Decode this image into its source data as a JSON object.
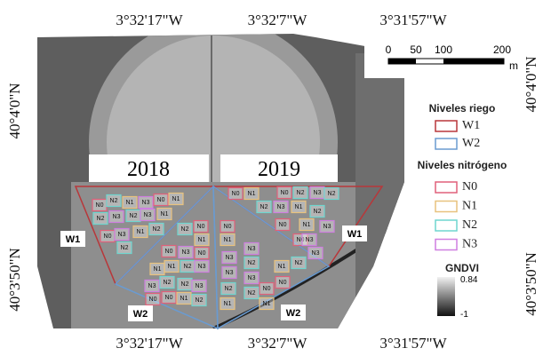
{
  "coordinates": {
    "top": [
      "3°32'17\"W",
      "3°32'7\"W",
      "3°31'57\"W"
    ],
    "bottom": [
      "3°32'17\"W",
      "3°32'7\"W",
      "3°31'57\"W"
    ],
    "left": [
      "40°4'0\"N",
      "40°3'50\"N"
    ],
    "right": [
      "40°4'0\"N",
      "40°3'50\"N"
    ]
  },
  "years": [
    "2018",
    "2019"
  ],
  "scale_bar": {
    "ticks": [
      "0",
      "50",
      "100",
      "200"
    ],
    "unit": "m"
  },
  "field_labels": [
    "W1",
    "W2",
    "W2",
    "W1"
  ],
  "legend": {
    "irrigation_title": "Niveles riego",
    "irrigation": [
      {
        "label": "W1",
        "color": "#b8373a"
      },
      {
        "label": "W2",
        "color": "#6a9bd1"
      }
    ],
    "nitrogen_title": "Niveles nitrógeno",
    "nitrogen": [
      {
        "label": "N0",
        "color": "#e0607a"
      },
      {
        "label": "N1",
        "color": "#e8c27e"
      },
      {
        "label": "N2",
        "color": "#6fd6cf"
      },
      {
        "label": "N3",
        "color": "#cf7fe0"
      }
    ],
    "index_title": "GNDVI",
    "index_max": "0.84",
    "index_min": "-1"
  },
  "plots": [
    "N0",
    "N2",
    "N1",
    "N3",
    "N0",
    "N1",
    "N2",
    "N3",
    "N2",
    "N3",
    "N1",
    "N0",
    "N3",
    "N1",
    "N2",
    "N2",
    "N2",
    "N0",
    "N1",
    "N0",
    "N3",
    "N0",
    "N1",
    "N1",
    "N2",
    "N3",
    "N3",
    "N2",
    "N2",
    "N3",
    "N0",
    "N0",
    "N1",
    "N2",
    "N0",
    "N1",
    "N3",
    "N3",
    "N2",
    "N1",
    "N3",
    "N2",
    "N3",
    "N2",
    "N0",
    "N1",
    "N1",
    "N0",
    "N2",
    "N3",
    "N0",
    "N0",
    "N1",
    "N0",
    "N2",
    "N3",
    "N2",
    "N2",
    "N3",
    "N1",
    "N2",
    "N3",
    "N0",
    "N1",
    "N3"
  ]
}
